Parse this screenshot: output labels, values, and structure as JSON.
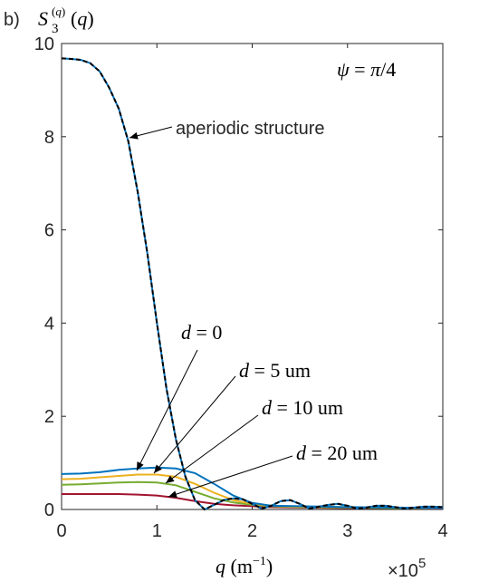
{
  "panel_label": "b)",
  "y_title": "S_3^{(q)}(q)",
  "x_label": "q (m^{-1})",
  "x_exponent": "×10^5",
  "param_label": "ψ = π/4",
  "colors": {
    "aperiodic": "#000000",
    "aperiodic_under": "#0072BD",
    "d0": "#0072BD",
    "d5": "#EDB120",
    "d10": "#77AC30",
    "d20": "#A2142F"
  },
  "chart_data": {
    "type": "line",
    "xlabel": "q (m⁻¹)",
    "x_scale_note": "×10^5",
    "ylabel": "S_3^(q)(q)",
    "xlim": [
      0,
      4
    ],
    "ylim": [
      0,
      10
    ],
    "xticks": [
      0,
      1,
      2,
      3,
      4
    ],
    "yticks": [
      0,
      2,
      4,
      6,
      8,
      10
    ],
    "grid": false,
    "annotations": [
      {
        "text": "aperiodic structure",
        "series": "aperiodic structure"
      },
      {
        "text": "d = 0",
        "series": "d = 0"
      },
      {
        "text": "d = 5 um",
        "series": "d = 5 um"
      },
      {
        "text": "d = 10 um",
        "series": "d = 10 um"
      },
      {
        "text": "d = 20 um",
        "series": "d = 20 um"
      }
    ],
    "series": [
      {
        "name": "aperiodic structure",
        "style": "dashed",
        "x": [
          0,
          0.1,
          0.2,
          0.3,
          0.4,
          0.5,
          0.6,
          0.7,
          0.8,
          0.9,
          1.0,
          1.1,
          1.2,
          1.3,
          1.4,
          1.5,
          1.6,
          1.7,
          1.8,
          1.9,
          2.0,
          2.1,
          2.2,
          2.3,
          2.4,
          2.5,
          2.6,
          2.7,
          2.8,
          2.9,
          3.0,
          3.1,
          3.2,
          3.3,
          3.4,
          3.5,
          3.6,
          3.7,
          3.8,
          3.9,
          4.0
        ],
        "values": [
          9.68,
          9.67,
          9.65,
          9.58,
          9.4,
          9.05,
          8.6,
          7.9,
          6.8,
          5.5,
          4.0,
          2.6,
          1.5,
          0.7,
          0.2,
          0.0,
          0.1,
          0.2,
          0.24,
          0.22,
          0.12,
          0.02,
          0.08,
          0.18,
          0.2,
          0.12,
          0.02,
          0.06,
          0.1,
          0.12,
          0.08,
          0.02,
          0.04,
          0.08,
          0.08,
          0.05,
          0.02,
          0.04,
          0.06,
          0.06,
          0.05
        ]
      },
      {
        "name": "d = 0",
        "x": [
          0,
          0.2,
          0.4,
          0.6,
          0.8,
          1.0,
          1.2,
          1.4,
          1.6,
          1.8,
          2.0,
          2.2,
          2.5,
          3.0,
          3.5,
          4.0
        ],
        "values": [
          0.76,
          0.77,
          0.8,
          0.85,
          0.88,
          0.9,
          0.88,
          0.78,
          0.55,
          0.3,
          0.14,
          0.08,
          0.07,
          0.05,
          0.04,
          0.03
        ]
      },
      {
        "name": "d = 5 um",
        "x": [
          0,
          0.2,
          0.4,
          0.6,
          0.8,
          1.0,
          1.2,
          1.4,
          1.6,
          1.8,
          2.0,
          2.2,
          2.5,
          3.0,
          3.5,
          4.0
        ],
        "values": [
          0.65,
          0.66,
          0.69,
          0.72,
          0.75,
          0.75,
          0.7,
          0.55,
          0.36,
          0.2,
          0.12,
          0.08,
          0.06,
          0.05,
          0.04,
          0.03
        ]
      },
      {
        "name": "d = 10 um",
        "x": [
          0,
          0.2,
          0.4,
          0.6,
          0.8,
          1.0,
          1.2,
          1.4,
          1.6,
          1.8,
          2.0,
          2.2,
          2.5,
          3.0,
          3.5,
          4.0
        ],
        "values": [
          0.53,
          0.54,
          0.56,
          0.58,
          0.59,
          0.58,
          0.52,
          0.38,
          0.24,
          0.15,
          0.1,
          0.07,
          0.05,
          0.04,
          0.03,
          0.03
        ]
      },
      {
        "name": "d = 20 um",
        "x": [
          0,
          0.2,
          0.4,
          0.6,
          0.8,
          1.0,
          1.2,
          1.4,
          1.6,
          1.8,
          2.0,
          2.2,
          2.5,
          3.0,
          3.5,
          4.0
        ],
        "values": [
          0.33,
          0.33,
          0.33,
          0.33,
          0.32,
          0.3,
          0.25,
          0.18,
          0.12,
          0.09,
          0.07,
          0.05,
          0.04,
          0.03,
          0.03,
          0.02
        ]
      }
    ]
  }
}
